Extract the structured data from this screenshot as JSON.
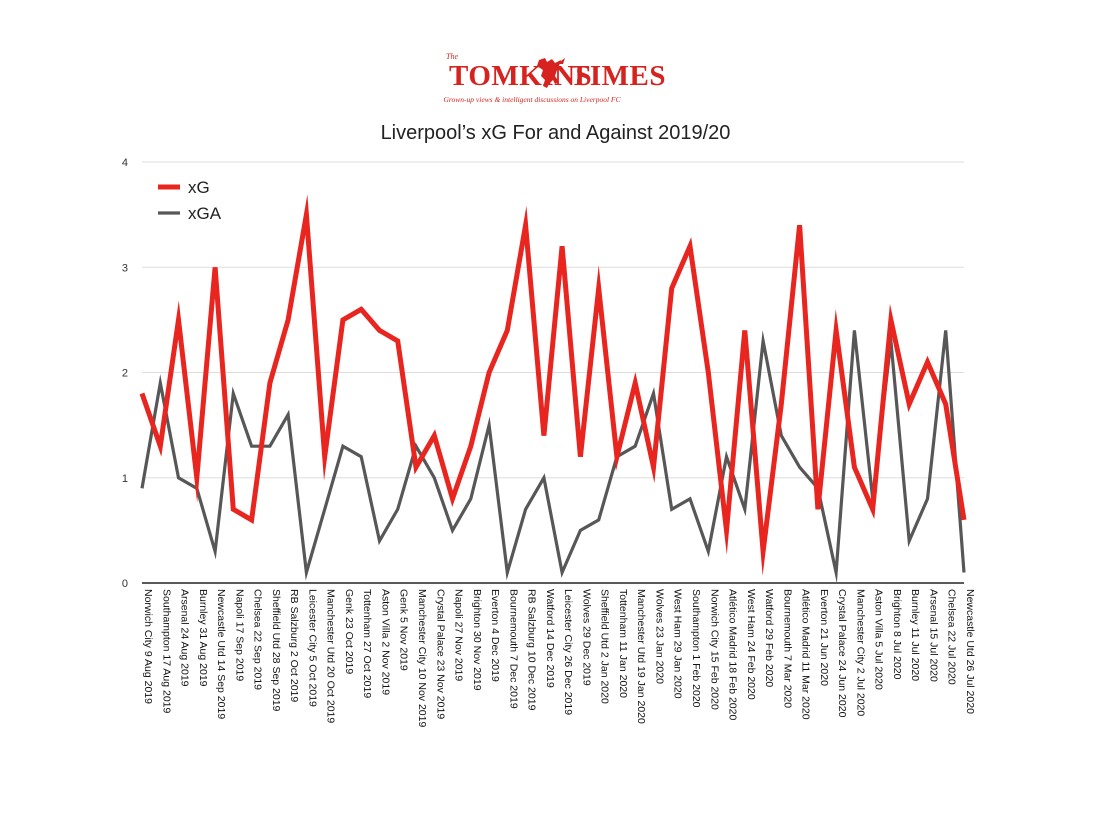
{
  "logo": {
    "prefix": "The",
    "word1": "TOMKINS",
    "word2": "TIMES",
    "tagline": "Grown-up views & intelligent discussions on Liverpool FC"
  },
  "chart_data": {
    "type": "line",
    "title": "Liverpool’s xG For and Against 2019/20",
    "xlabel": "",
    "ylabel": "",
    "ylim": [
      0,
      4
    ],
    "yticks": [
      "0",
      "1",
      "2",
      "3",
      "4"
    ],
    "grid": true,
    "legend_position": "top-left",
    "x": [
      "Norwich City 9 Aug 2019",
      "Southampton 17 Aug 2019",
      "Arsenal 24 Aug 2019",
      "Burnley 31 Aug 2019",
      "Newcastle Utd 14 Sep 2019",
      "Napoli 17 Sep 2019",
      "Chelsea 22 Sep 2019",
      "Sheffield Utd 28 Sep 2019",
      "RB Salzburg 2 Oct 2019",
      "Leicester City 5 Oct 2019",
      "Manchester Utd 20 Oct 2019",
      "Genk 23 Oct 2019",
      "Tottenham 27 Oct 2019",
      "Aston Villa 2 Nov 2019",
      "Genk 5 Nov 2019",
      "Manchester City 10 Nov 2019",
      "Crystal Palace 23 Nov 2019",
      "Napoli 27 Nov 2019",
      "Brighton 30 Nov 2019",
      "Everton 4 Dec 2019",
      "Bournemouth 7 Dec 2019",
      "RB Salzburg 10 Dec 2019",
      "Watford 14 Dec 2019",
      "Leicester City 26 Dec 2019",
      "Wolves 29 Dec 2019",
      "Sheffield Utd 2 Jan 2020",
      "Tottenham 11 Jan 2020",
      "Manchester Utd 19 Jan 2020",
      "Wolves 23 Jan 2020",
      "West Ham 29 Jan 2020",
      "Southampton 1 Feb 2020",
      "Norwich City 15 Feb 2020",
      "Atlético Madrid 18 Feb 2020",
      "West Ham 24 Feb 2020",
      "Watford 29 Feb 2020",
      "Bournemouth 7 Mar 2020",
      "Atlético Madrid 11 Mar 2020",
      "Everton 21 Jun 2020",
      "Crystal Palace 24 Jun 2020",
      "Manchester City 2 Jul 2020",
      "Aston Villa 5 Jul 2020",
      "Brighton 8 Jul 2020",
      "Burnley 11 Jul 2020",
      "Arsenal 15 Jul 2020",
      "Chelsea 22 Jul 2020",
      "Newcastle Utd 26 Jul 2020"
    ],
    "series": [
      {
        "name": "xG",
        "color": "#e8251f",
        "values": [
          1.8,
          1.3,
          2.5,
          1.0,
          3.0,
          0.7,
          0.6,
          1.9,
          2.5,
          3.5,
          1.2,
          2.5,
          2.6,
          2.4,
          2.3,
          1.1,
          1.4,
          0.8,
          1.3,
          2.0,
          2.4,
          3.4,
          1.4,
          3.2,
          1.2,
          2.8,
          1.2,
          1.9,
          1.1,
          2.8,
          3.2,
          2.0,
          0.5,
          2.4,
          0.3,
          1.7,
          3.4,
          0.7,
          2.4,
          1.1,
          0.7,
          2.5,
          1.7,
          2.1,
          1.7,
          0.6
        ]
      },
      {
        "name": "xGA",
        "color": "#575757",
        "values": [
          0.9,
          1.9,
          1.0,
          0.9,
          0.3,
          1.8,
          1.3,
          1.3,
          1.6,
          0.1,
          0.7,
          1.3,
          1.2,
          0.4,
          0.7,
          1.3,
          1.0,
          0.5,
          0.8,
          1.5,
          0.1,
          0.7,
          1.0,
          0.1,
          0.5,
          0.6,
          1.2,
          1.3,
          1.8,
          0.7,
          0.8,
          0.3,
          1.2,
          0.7,
          2.3,
          1.4,
          1.1,
          0.9,
          0.1,
          2.4,
          0.8,
          2.3,
          0.4,
          0.8,
          2.4,
          0.1
        ]
      }
    ]
  }
}
